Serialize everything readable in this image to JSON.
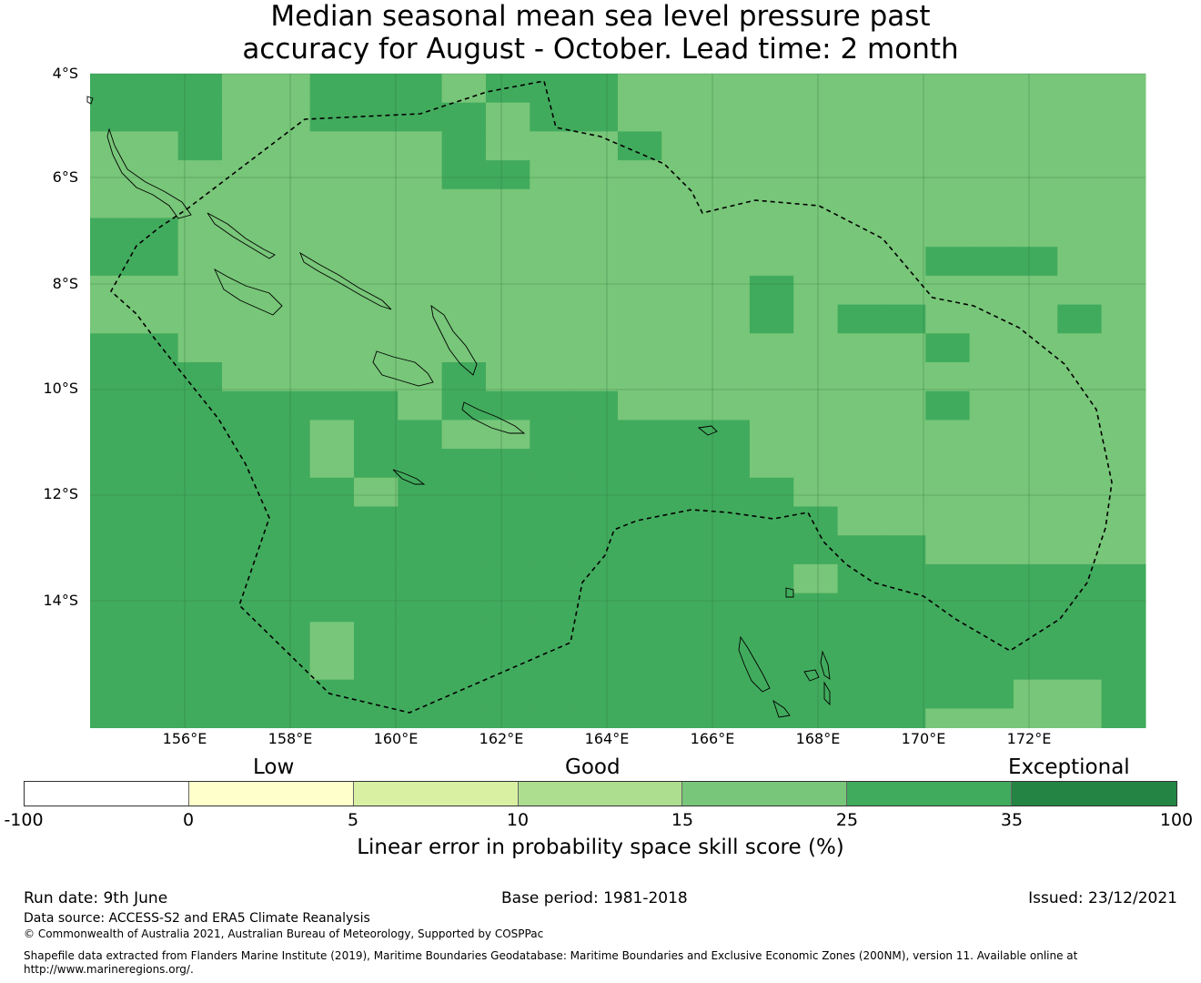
{
  "title_line_1": "Median seasonal mean sea level pressure past",
  "title_line_2": "accuracy for August - October. Lead time: 2 month",
  "map": {
    "lat_labels": [
      "4°S",
      "6°S",
      "8°S",
      "10°S",
      "12°S",
      "14°S"
    ],
    "lon_labels": [
      "156°E",
      "158°E",
      "160°E",
      "162°E",
      "164°E",
      "166°E",
      "168°E",
      "170°E",
      "172°E"
    ]
  },
  "legend": {
    "categories": [
      "Low",
      "Good",
      "Exceptional"
    ],
    "ticks": [
      "-100",
      "0",
      "5",
      "10",
      "15",
      "25",
      "35",
      "100"
    ],
    "colors": [
      "#ffffff",
      "#ffffcc",
      "#d9f0a3",
      "#addd8e",
      "#78c679",
      "#41ab5d",
      "#238443"
    ],
    "title": "Linear error in probability space skill score (%)"
  },
  "footer": {
    "run_date": "Run date: 9th June",
    "base_period": "Base period: 1981-2018",
    "issued": "Issued: 23/12/2021",
    "data_source": "Data source: ACCESS-S2 and ERA5 Climate Reanalysis",
    "copyright": "© Commonwealth of Australia 2021, Australian Bureau of Meteorology, Supported by COSPPac",
    "shapefile_note": "Shapefile data extracted from Flanders Marine Institute (2019), Maritime Boundaries Geodatabase: Maritime Boundaries and Exclusive Economic Zones (200NM), version 11. Available online at",
    "shapefile_url": "http://www.marineregions.org/."
  }
}
